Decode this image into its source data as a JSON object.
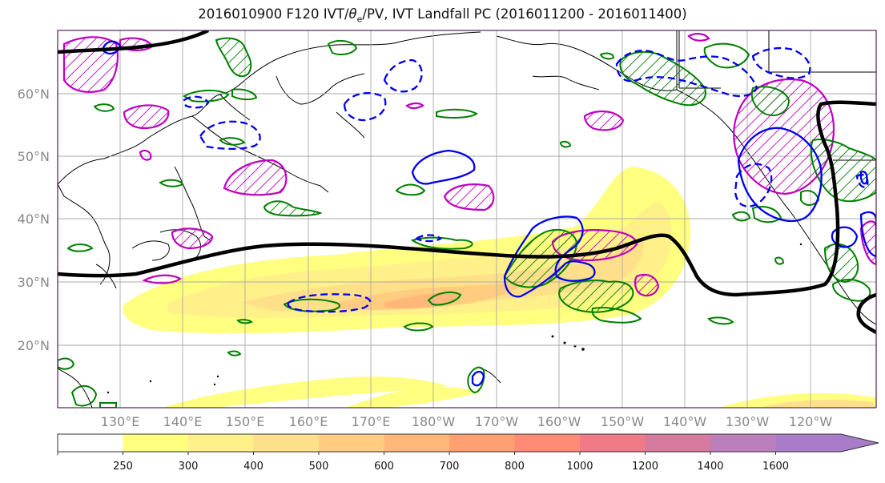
{
  "title": {
    "prefix": "2016010900 F120 IVT/",
    "theta": "θ",
    "theta_sub": "e",
    "suffix": "/PV, IVT Landfall PC (2016011200 - 2016011400)"
  },
  "axes": {
    "lat_labels": [
      "60°N",
      "50°N",
      "40°N",
      "30°N",
      "20°N"
    ],
    "lon_labels": [
      "130°E",
      "140°E",
      "150°E",
      "160°E",
      "170°E",
      "180°W",
      "170°W",
      "160°W",
      "150°W",
      "140°W",
      "130°W",
      "120°W"
    ]
  },
  "colorbar": {
    "ticks": [
      "250",
      "300",
      "400",
      "500",
      "600",
      "700",
      "800",
      "1000",
      "1200",
      "1400",
      "1600"
    ],
    "colors": [
      "#ffffff",
      "#ffff80",
      "#fff08a",
      "#ffe08a",
      "#ffcc80",
      "#ffb87a",
      "#ffa070",
      "#ff8a75",
      "#f07a85",
      "#d87aa0",
      "#bb80bb",
      "#a87cc8"
    ]
  },
  "colors": {
    "ivt_contour_black": "#000000",
    "theta_e_green": "#008000",
    "pv_blue": "#0000ee",
    "pv_magenta": "#c000c0",
    "grid": "#aaaaaa",
    "frame": "#5a1a5a"
  }
}
